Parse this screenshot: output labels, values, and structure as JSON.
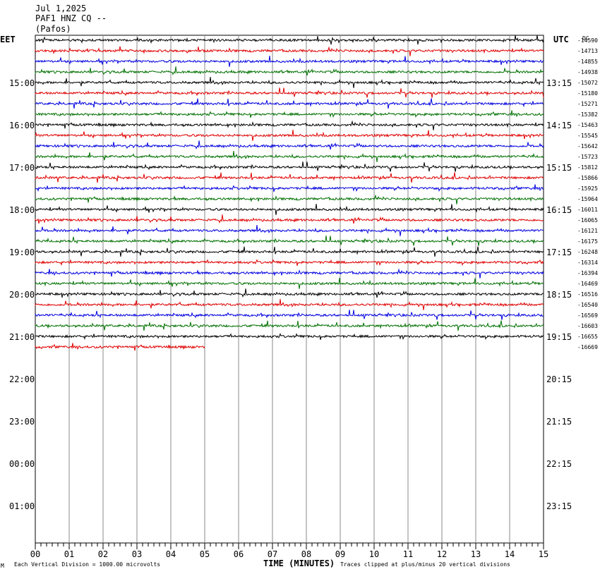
{
  "header": {
    "date": "Jul 1,2025",
    "station": "PAF1 HNZ CQ --",
    "location": "(Pafos)"
  },
  "left_tz": "EET",
  "right_tz": "UTC",
  "dc_label": "DC",
  "footer": {
    "scale": "Each Vertical Division = 1000.00 microvolts",
    "xlabel": "TIME (MINUTES)",
    "clip": "Traces clipped at plus/minus 20 vertical divisions",
    "corner": "M"
  },
  "colors": [
    "#000000",
    "#e00000",
    "#0000e0",
    "#007000"
  ],
  "chart_data": {
    "type": "line",
    "title": "",
    "xlabel": "TIME (MINUTES)",
    "ylabel": "",
    "xlim": [
      0,
      15
    ],
    "x_ticks": [
      "00",
      "01",
      "02",
      "03",
      "04",
      "05",
      "06",
      "07",
      "08",
      "09",
      "10",
      "11",
      "12",
      "13",
      "14",
      "15"
    ],
    "grid": true,
    "left_hour_labels": [
      "15:00",
      "16:00",
      "17:00",
      "18:00",
      "19:00",
      "20:00",
      "21:00",
      "22:00",
      "23:00",
      "00:00",
      "01:00"
    ],
    "right_hour_labels": [
      "13:15",
      "14:15",
      "15:15",
      "16:15",
      "17:15",
      "18:15",
      "19:15",
      "20:15",
      "21:15",
      "22:15",
      "23:15"
    ],
    "trace_dc_offsets": [
      "-14590",
      "-14713",
      "-14855",
      "-14938",
      "-15072",
      "-15180",
      "-15271",
      "-15382",
      "-15463",
      "-15545",
      "-15642",
      "-15723",
      "-15812",
      "-15866",
      "-15925",
      "-15964",
      "-16011",
      "-16065",
      "-16121",
      "-16175",
      "-16248",
      "-16314",
      "-16394",
      "-16469",
      "-16516",
      "-16540",
      "-16569",
      "-16603",
      "-16655",
      "-16669"
    ],
    "traces_per_hour": 4,
    "trace_minutes": 15,
    "last_trace_end_minute": 5
  }
}
